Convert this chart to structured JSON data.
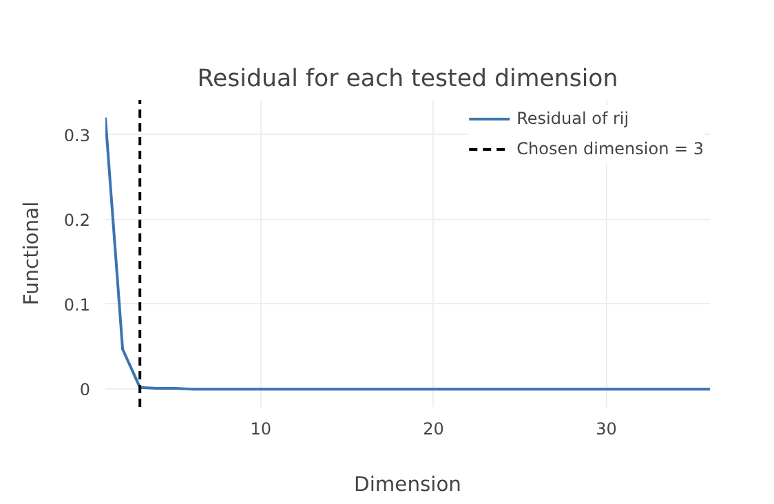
{
  "chart_data": {
    "type": "line",
    "title": "Residual for each tested dimension",
    "xlabel": "Dimension",
    "ylabel": "Functional",
    "x": [
      1,
      2,
      3,
      4,
      5,
      6,
      8,
      10,
      12,
      14,
      16,
      18,
      20,
      22,
      24,
      26,
      28,
      30,
      32,
      34,
      36
    ],
    "series": [
      {
        "name": "Residual of rij",
        "color": "#3a75b0",
        "values": [
          0.32,
          0.047,
          0.002,
          0.001,
          0.001,
          0,
          0,
          0,
          0,
          0,
          0,
          0,
          0,
          0,
          0,
          0,
          0,
          0,
          0,
          0,
          0
        ]
      },
      {
        "name": "Chosen dimension = 3",
        "color": "#000000",
        "line_style": "dashed",
        "x": [
          3,
          3
        ],
        "values": [
          -0.021,
          0.341
        ]
      }
    ],
    "xlim": [
      1,
      36
    ],
    "ylim": [
      -0.021,
      0.341
    ],
    "xticks": [
      10,
      20,
      30
    ],
    "yticks": [
      0,
      0.1,
      0.2,
      0.3
    ],
    "grid": true,
    "legend": "top right",
    "line_style": "solid",
    "marker": "none"
  }
}
